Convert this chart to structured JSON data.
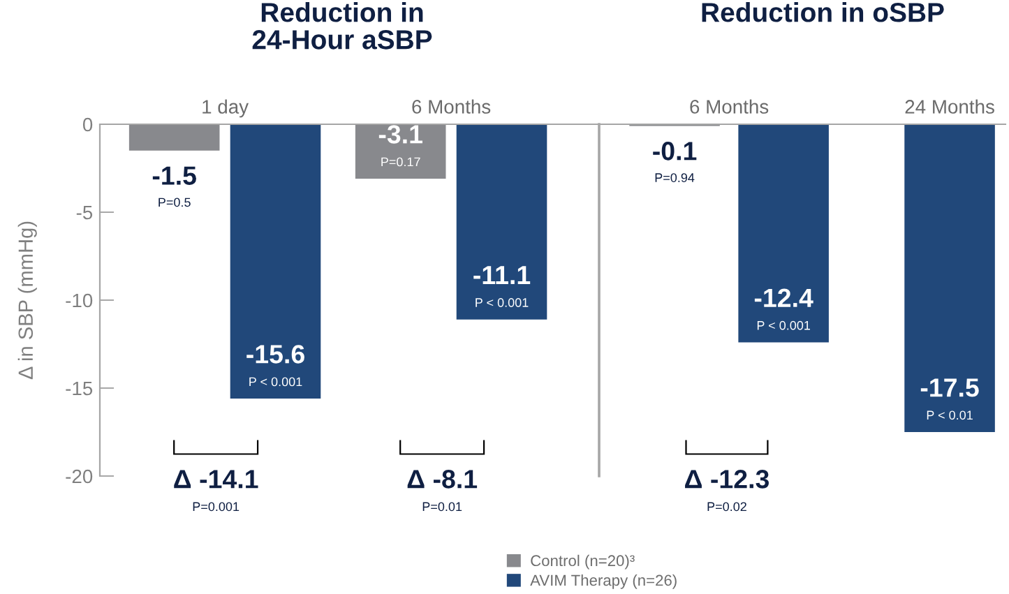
{
  "chart_data": [
    {
      "type": "bar",
      "title": "Reduction in\n24-Hour aSBP",
      "ylabel": "Δ in SBP (mmHg)",
      "categories": [
        "1 day",
        "6 Months"
      ],
      "series": [
        {
          "name": "Control (n=20)³",
          "color": "#88898d",
          "values": [
            -1.5,
            -3.1
          ]
        },
        {
          "name": "AVIM Therapy (n=26)",
          "color": "#21487a",
          "values": [
            -15.6,
            -11.1
          ]
        }
      ],
      "ylim": [
        -20,
        0
      ],
      "yticks": [
        0,
        -5,
        -10,
        -15,
        -20
      ],
      "data_labels": true,
      "legend": "bottom",
      "annotations": [
        "P=0.5",
        "P < 0.001",
        "P=0.17",
        "P < 0.001",
        "Δ -14.1",
        "P=0.001",
        "Δ -8.1",
        "P=0.01"
      ]
    },
    {
      "type": "bar",
      "title": "Reduction in oSBP",
      "categories": [
        "6 Months",
        "24 Months"
      ],
      "series": [
        {
          "color": "#88898d",
          "values": [
            -0.1,
            null
          ]
        },
        {
          "color": "#21487a",
          "values": [
            -12.4,
            -17.5
          ]
        }
      ],
      "ylim": [
        -20,
        0
      ],
      "tick_labels": "x",
      "data_labels": true,
      "annotations": [
        "P=0.94",
        "P < 0.001",
        "P < 0.01",
        "Δ -12.3",
        "P=0.02"
      ]
    }
  ]
}
